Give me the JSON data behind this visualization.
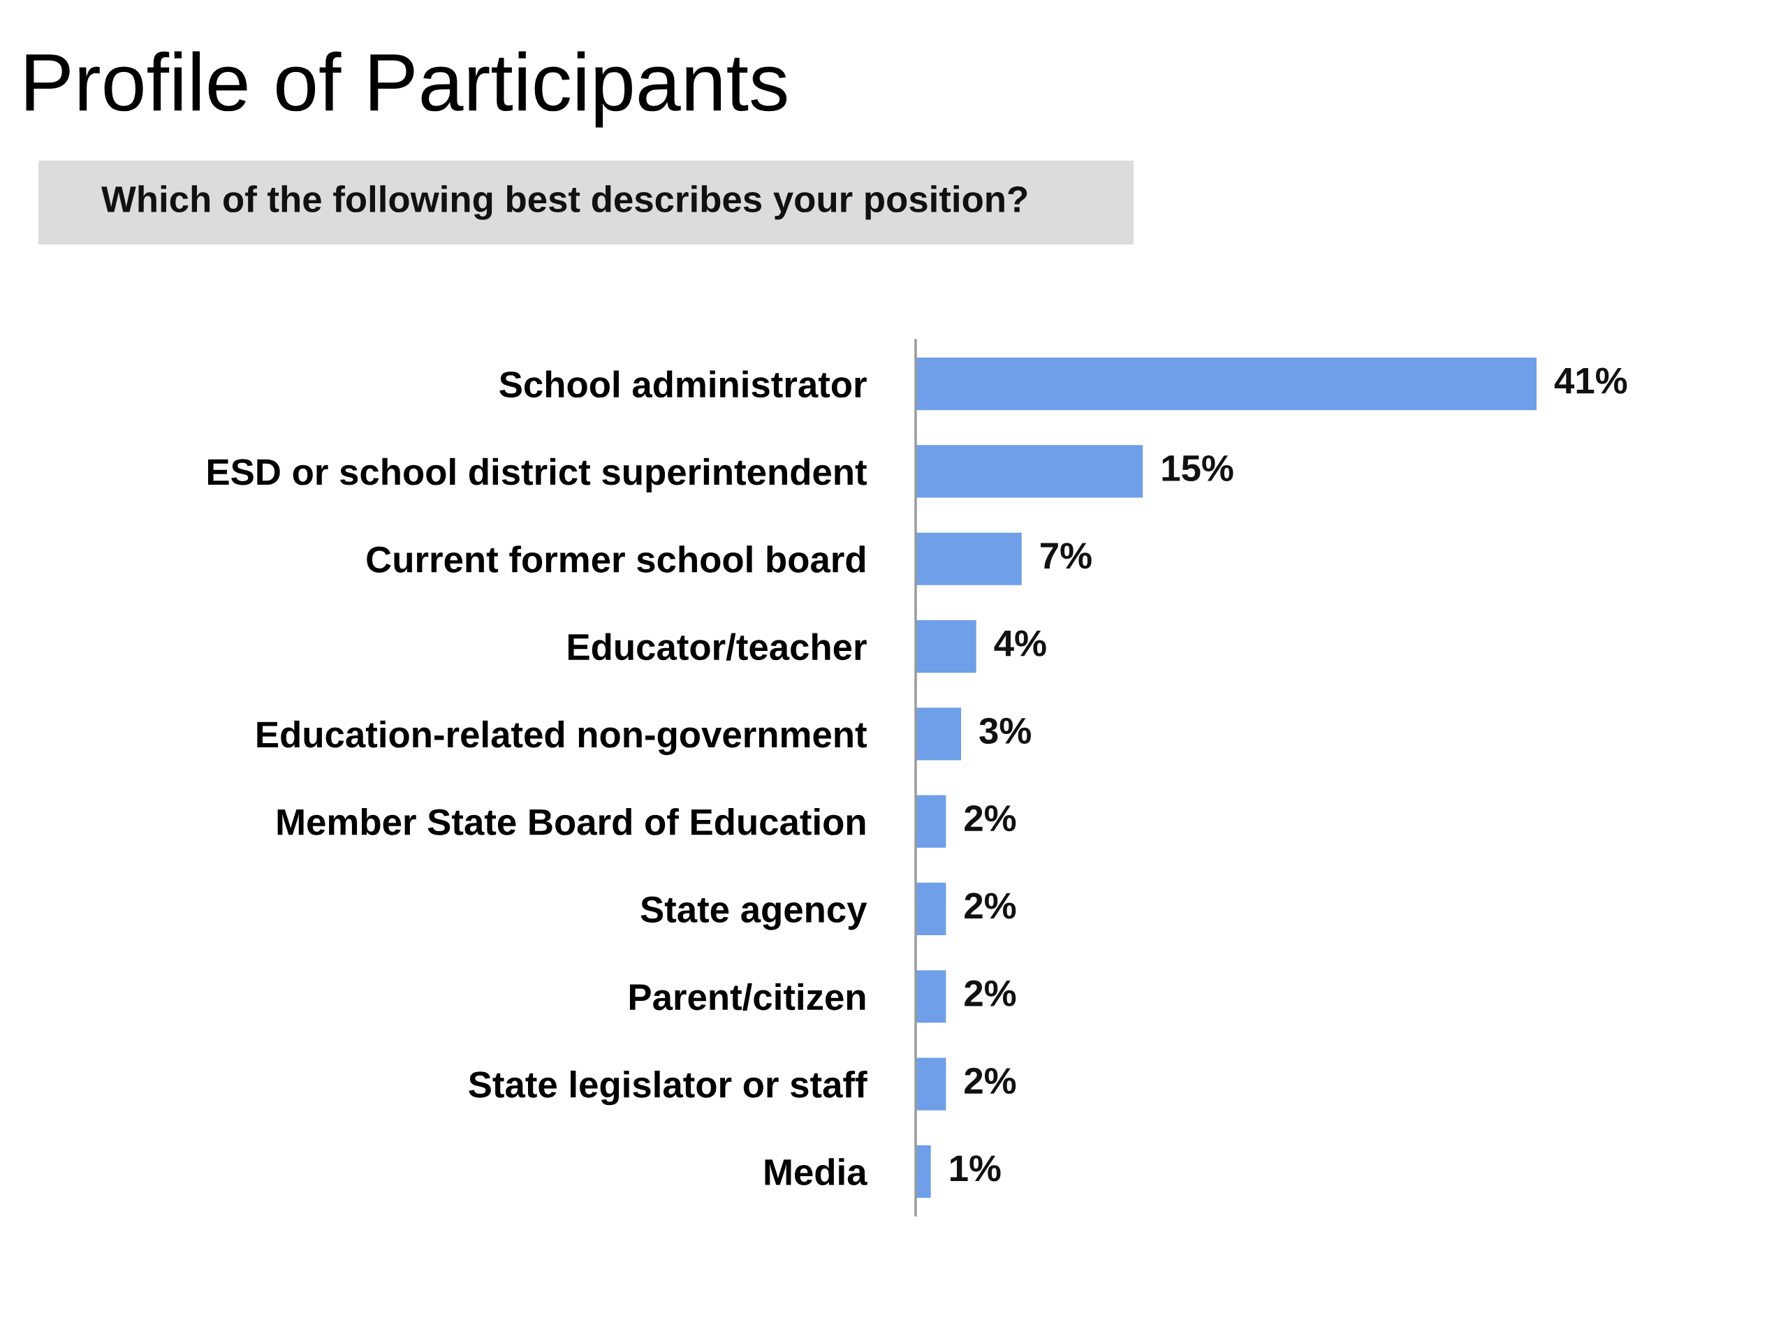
{
  "chart_data": {
    "type": "bar",
    "orientation": "horizontal",
    "title": "Profile of Participants",
    "subtitle": "Which of the following best describes your position?",
    "categories": [
      "School administrator",
      "ESD or school district superintendent",
      "Current former school board",
      "Educator/teacher",
      "Education-related non-government",
      "Member State Board of Education",
      "State agency",
      "Parent/citizen",
      "State legislator or staff",
      "Media"
    ],
    "values": [
      41,
      15,
      7,
      4,
      3,
      2,
      2,
      2,
      2,
      1
    ],
    "value_labels": [
      "41%",
      "15%",
      "7%",
      "4%",
      "3%",
      "2%",
      "2%",
      "2%",
      "2%",
      "1%"
    ],
    "color": "#6e9fe8",
    "grid": false,
    "legend": false,
    "tick_labels": "y"
  }
}
